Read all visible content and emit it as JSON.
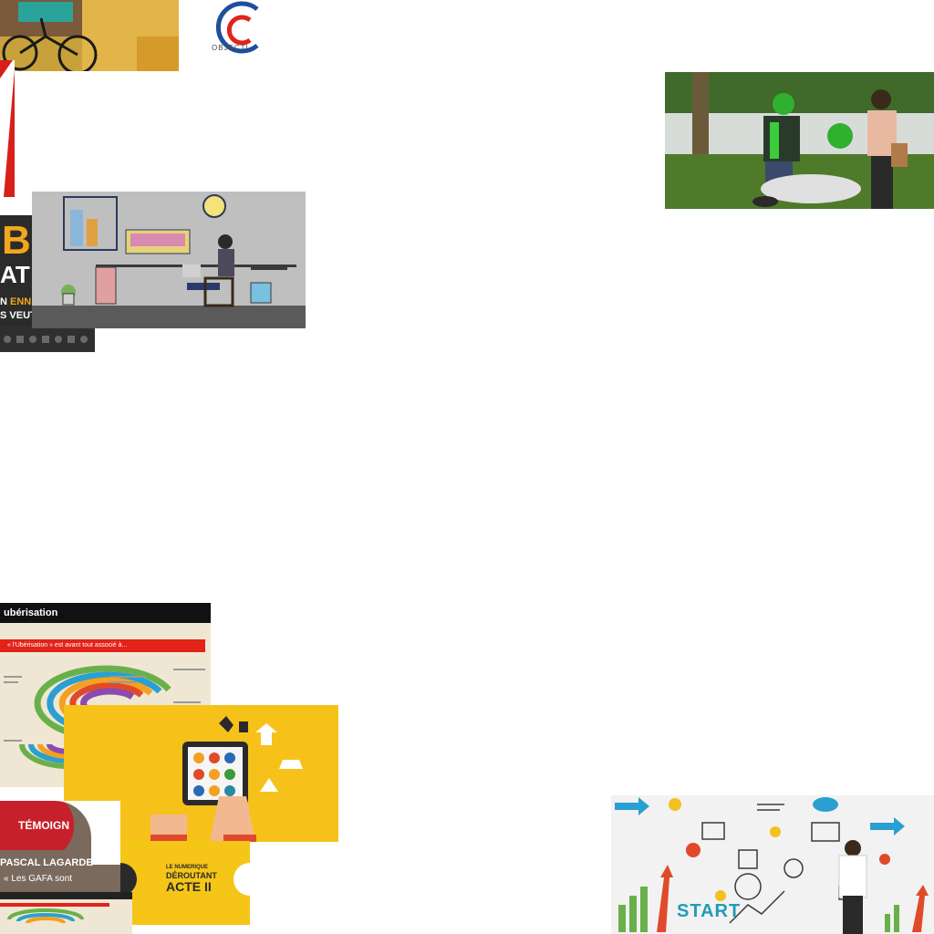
{
  "collage": {
    "logo_text": "OBJECTI",
    "uber": {
      "line1": "B",
      "line2": "AT",
      "line3_prefix": "N ",
      "line3_highlight": "ENNE",
      "line4": "S VEUT"
    },
    "infographic": {
      "header": "ubérisation",
      "red_bar": "« l'Ubérisation » est avant tout associé à..."
    },
    "temoignage": {
      "title": "TÉMOIGN",
      "name": "PASCAL LAGARDE",
      "quote": "« Les GAFA sont"
    },
    "acte": {
      "line1": "LE NUMERIQUE",
      "line2": "DÉROUTANT",
      "line3": "ACTE II"
    },
    "start_board": {
      "word": "START"
    }
  },
  "colors": {
    "accent_orange": "#f2a71b",
    "accent_yellow": "#f6c21a",
    "accent_red": "#e2231a",
    "accent_teal": "#1f9bb8"
  }
}
